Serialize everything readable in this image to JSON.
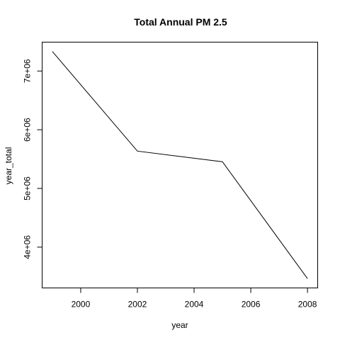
{
  "chart_data": {
    "type": "line",
    "title": "Total Annual PM 2.5",
    "xlabel": "year",
    "ylabel": "year_total",
    "x": [
      1999,
      2002,
      2005,
      2008
    ],
    "series": [
      {
        "values": [
          7332967,
          5635780,
          5454703,
          3464206
        ]
      }
    ],
    "xlim": [
      1998.64,
      2008.36
    ],
    "ylim": [
      3305000,
      7492000
    ],
    "xticks": [
      2000,
      2002,
      2004,
      2006,
      2008
    ],
    "xtick_labels": [
      "2000",
      "2002",
      "2004",
      "2006",
      "2008"
    ],
    "yticks": [
      4000000,
      5000000,
      6000000,
      7000000
    ],
    "ytick_labels": [
      "4e+06",
      "5e+06",
      "6e+06",
      "7e+06"
    ],
    "grid": false,
    "line_color": "#000000"
  }
}
